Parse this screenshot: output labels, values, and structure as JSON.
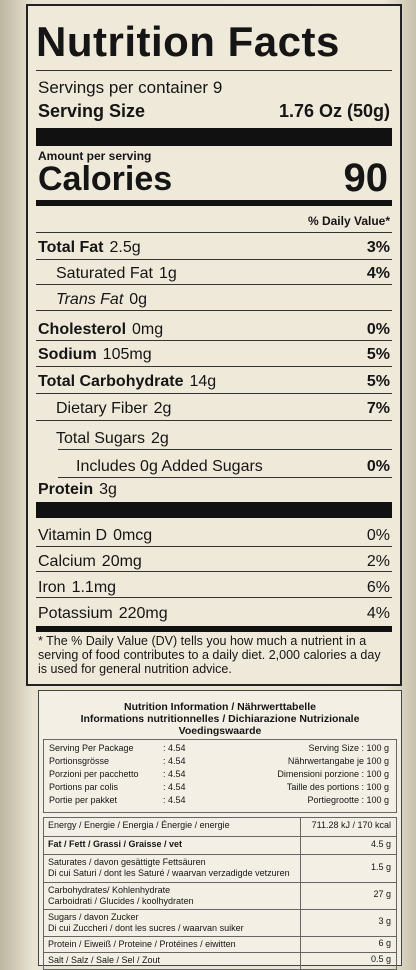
{
  "us_label": {
    "title": "Nutrition Facts",
    "servings": "Servings per container 9",
    "serving_size_label": "Serving Size",
    "serving_size_value": "1.76 Oz (50g)",
    "amount_per_serving": "Amount per serving",
    "calories_label": "Calories",
    "calories_value": "90",
    "dv_header": "% Daily Value*",
    "rows": [
      {
        "name": "Total Fat",
        "amount": "2.5g",
        "dv": "3%"
      },
      {
        "name": "Saturated Fat",
        "amount": "1g",
        "dv": "4%"
      },
      {
        "name": "Trans Fat",
        "amount": "0g"
      },
      {
        "name": "Cholesterol",
        "amount": "0mg",
        "dv": "0%"
      },
      {
        "name": "Sodium",
        "amount": "105mg",
        "dv": "5%"
      },
      {
        "name": "Total Carbohydrate",
        "amount": "14g",
        "dv": "5%"
      },
      {
        "name": "Dietary Fiber",
        "amount": "2g",
        "dv": "7%"
      },
      {
        "name": "Total Sugars",
        "amount": "2g"
      },
      {
        "name": "Includes 0g Added Sugars",
        "dv": "0%"
      },
      {
        "name": "Protein",
        "amount": "3g"
      },
      {
        "name": "Vitamin D",
        "amount": "0mcg",
        "dv": "0%"
      },
      {
        "name": "Calcium",
        "amount": "20mg",
        "dv": "2%"
      },
      {
        "name": "Iron",
        "amount": "1.1mg",
        "dv": "6%"
      },
      {
        "name": "Potassium",
        "amount": "220mg",
        "dv": "4%"
      }
    ],
    "footnote": "* The % Daily Value (DV) tells you how much a nutrient in a serving of food contributes to a daily diet. 2,000 calories a day is used for general nutrition advice."
  },
  "eu_label": {
    "headings": [
      "Nutrition Information / Nährwerttabelle",
      "Informations nutritionnelles / Dichiarazione Nutrizionale",
      "Voedingswaarde"
    ],
    "servings_per_package": [
      {
        "label": "Serving Per Package",
        "value": ": 4.54"
      },
      {
        "label": "Portionsgrösse",
        "value": ": 4.54"
      },
      {
        "label": "Porzioni per pacchetto",
        "value": ": 4.54"
      },
      {
        "label": "Portions par colis",
        "value": ": 4.54"
      },
      {
        "label": "Portie per pakket",
        "value": ": 4.54"
      }
    ],
    "serving_size": [
      "Serving Size : 100 g",
      "Nährwertangabe je 100 g",
      "Dimensioni porzione : 100 g",
      "Taille des portions : 100 g",
      "Portiegrootte : 100 g"
    ],
    "rows": [
      {
        "name": [
          "Energy / Energie / Energia / Énergie / energie"
        ],
        "value": "711.28 kJ / 170 kcal"
      },
      {
        "name": [
          "Fat / Fett / Grassi / Graisse / vet"
        ],
        "value": "4.5 g"
      },
      {
        "name": [
          "Saturates / davon gesättigte Fettsäuren",
          "Di cui Saturi / dont les Saturé / waarvan verzadigde vetzuren"
        ],
        "value": "1.5 g"
      },
      {
        "name": [
          "Carbohydrates/ Kohlenhydrate",
          "Carboidrati / Glucides / koolhydraten"
        ],
        "value": "27 g"
      },
      {
        "name": [
          "Sugars / davon Zucker",
          "Di cui Zuccheri / dont les sucres / waarvan suiker"
        ],
        "value": "3 g"
      },
      {
        "name": [
          "Protein / Eiweiß / Proteine / Protéines / eiwitten"
        ],
        "value": "6 g"
      },
      {
        "name": [
          "Salt / Salz / Sale / Sel / Zout"
        ],
        "value": "0.5 g"
      }
    ]
  }
}
